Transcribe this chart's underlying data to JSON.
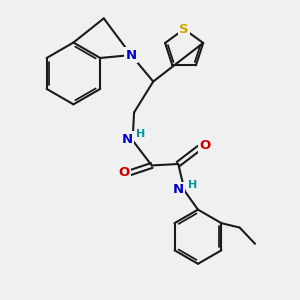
{
  "background_color": "#f0f0f0",
  "bond_color": "#1a1a1a",
  "bond_width": 1.5,
  "atom_colors": {
    "N": "#0000cc",
    "O": "#cc0000",
    "S": "#ccaa00",
    "H": "#009999",
    "C": "#1a1a1a"
  },
  "font_size_atom": 9.5,
  "font_size_H": 8.0
}
